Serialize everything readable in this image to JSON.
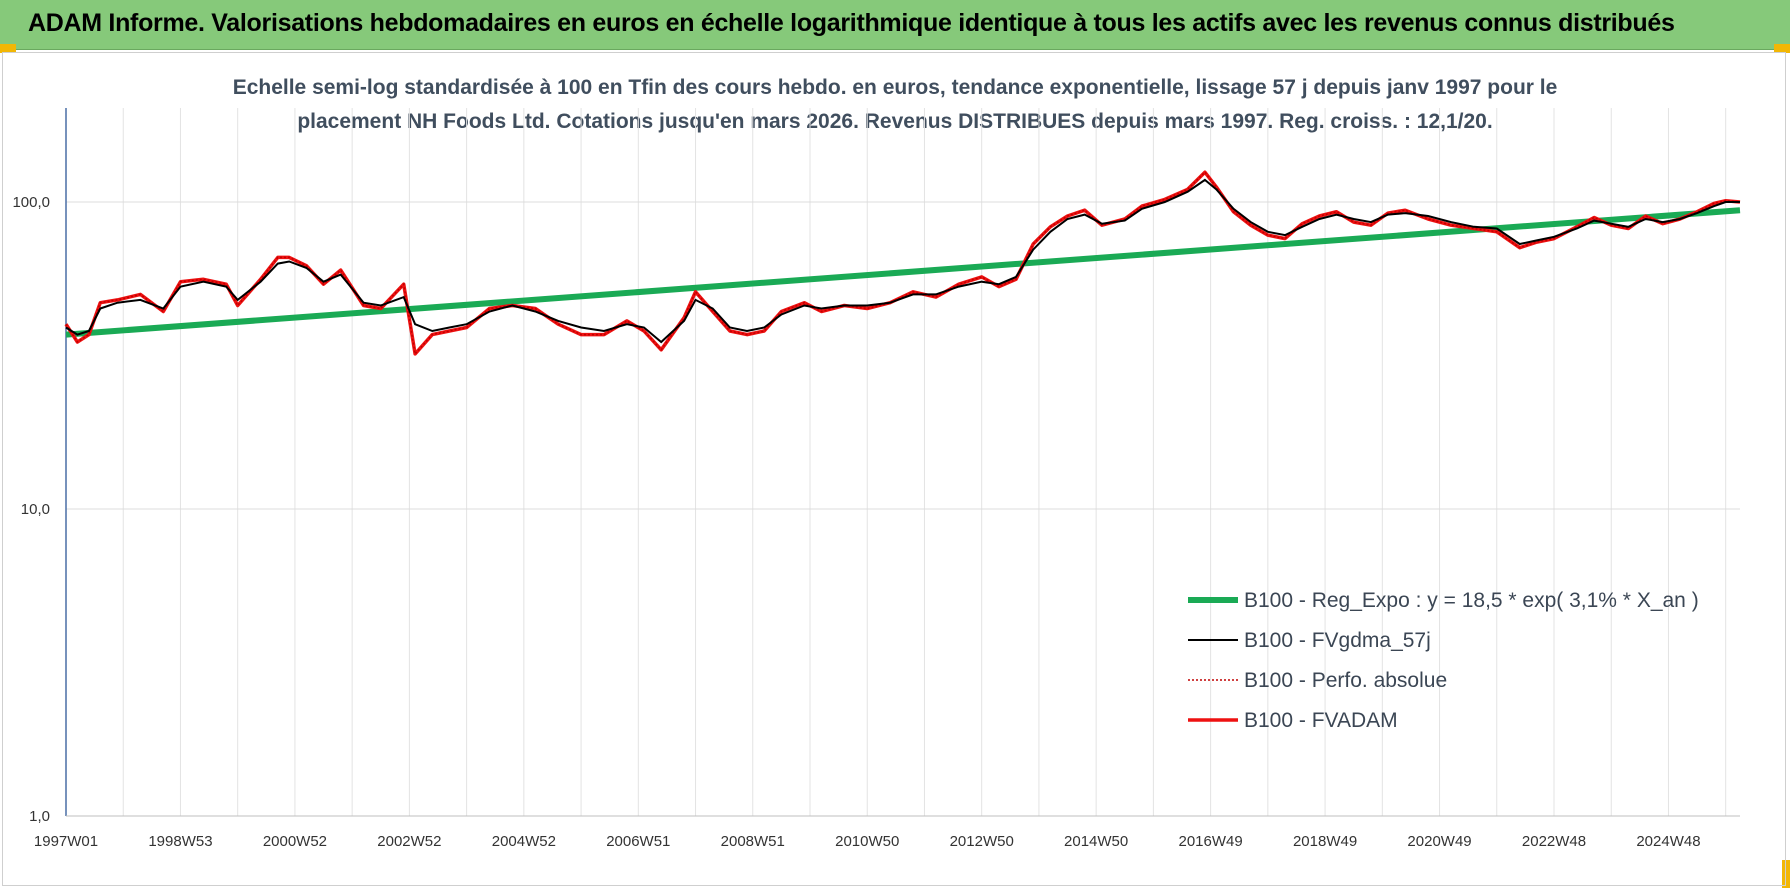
{
  "header": {
    "title": "ADAM Informe. Valorisations hebdomadaires en euros en échelle logarithmique identique à tous les actifs avec les revenus connus distribués"
  },
  "colors": {
    "banner": "#86c97a",
    "corner": "#f2b705",
    "trend": "#1aaa55",
    "smooth": "#000000",
    "perf": "#c00000",
    "fvadam": "#ee1111"
  },
  "chart_data": {
    "type": "line",
    "title_line1": "Echelle semi-log standardisée à 100 en Tfin des cours hebdo. en euros, tendance exponentielle, lissage 57 j depuis janv 1997 pour le",
    "title_line2": "placement NH Foods Ltd. Cotations jusqu'en mars 2026. Revenus DISTRIBUES depuis mars 1997. Reg. croiss. : 12,1/20.",
    "y_scale": "log",
    "ylim": [
      1,
      100
    ],
    "x_range": [
      1997.0,
      2026.25
    ],
    "y_ticks": [
      "1,0",
      "10,0",
      "100,0"
    ],
    "y_tick_values": [
      1,
      10,
      100
    ],
    "x_ticks": [
      "1997W01",
      "1998W53",
      "2000W52",
      "2002W52",
      "2004W52",
      "2006W51",
      "2008W51",
      "2010W50",
      "2012W50",
      "2014W50",
      "2016W49",
      "2018W49",
      "2020W49",
      "2022W48",
      "2024W48"
    ],
    "x_tick_values": [
      1997.0,
      1999.0,
      2001.0,
      2003.0,
      2005.0,
      2007.0,
      2009.0,
      2011.0,
      2013.0,
      2015.0,
      2017.0,
      2019.0,
      2021.0,
      2023.0,
      2025.0
    ],
    "grid": true,
    "legend_position": "bottom-right",
    "series": [
      {
        "name": "B100 - Reg_Expo : y = 18,5 * exp( 3,1% *  X_an )",
        "style": "trend",
        "x": [
          1997.0,
          2026.25
        ],
        "y": [
          37,
          94
        ]
      },
      {
        "name": "B100 - FVgdma_57j",
        "style": "smooth",
        "x": [
          1997.0,
          1997.2,
          1997.4,
          1997.6,
          1997.9,
          1998.3,
          1998.7,
          1999.0,
          1999.4,
          1999.8,
          2000.0,
          2000.4,
          2000.7,
          2000.9,
          2001.2,
          2001.5,
          2001.8,
          2002.2,
          2002.5,
          2002.9,
          2003.1,
          2003.4,
          2003.7,
          2004.0,
          2004.4,
          2004.8,
          2005.2,
          2005.6,
          2006.0,
          2006.4,
          2006.8,
          2007.1,
          2007.4,
          2007.8,
          2008.0,
          2008.3,
          2008.6,
          2008.9,
          2009.2,
          2009.5,
          2009.9,
          2010.2,
          2010.6,
          2011.0,
          2011.4,
          2011.8,
          2012.2,
          2012.6,
          2013.0,
          2013.3,
          2013.6,
          2013.9,
          2014.2,
          2014.5,
          2014.8,
          2015.1,
          2015.5,
          2015.8,
          2016.2,
          2016.6,
          2016.9,
          2017.1,
          2017.4,
          2017.7,
          2018.0,
          2018.3,
          2018.6,
          2018.9,
          2019.2,
          2019.5,
          2019.8,
          2020.1,
          2020.4,
          2020.8,
          2021.2,
          2021.6,
          2022.0,
          2022.4,
          2022.7,
          2023.0,
          2023.4,
          2023.7,
          2024.0,
          2024.3,
          2024.6,
          2024.9,
          2025.2,
          2025.5,
          2025.8,
          2026.0,
          2026.25
        ],
        "y": [
          39,
          37,
          38,
          45,
          47,
          48,
          45,
          53,
          55,
          53,
          48,
          55,
          63,
          64,
          61,
          55,
          58,
          47,
          46,
          49,
          40,
          38,
          39,
          40,
          44,
          46,
          44,
          41,
          39,
          38,
          40,
          39,
          35,
          41,
          48,
          45,
          39,
          38,
          39,
          43,
          46,
          45,
          46,
          46,
          47,
          50,
          50,
          53,
          55,
          54,
          57,
          70,
          80,
          88,
          91,
          85,
          87,
          95,
          100,
          108,
          118,
          110,
          95,
          86,
          80,
          78,
          83,
          88,
          91,
          88,
          86,
          91,
          92,
          90,
          86,
          83,
          82,
          73,
          75,
          77,
          82,
          87,
          85,
          83,
          88,
          86,
          88,
          92,
          97,
          100,
          100
        ]
      },
      {
        "name": "B100 - Perfo. absolue",
        "style": "perf",
        "x": [
          1997.0,
          1997.2,
          1997.4,
          1997.6,
          1997.9,
          1998.3,
          1998.7,
          1999.0,
          1999.4,
          1999.8,
          2000.0,
          2000.4,
          2000.7,
          2000.9,
          2001.2,
          2001.5,
          2001.8,
          2002.2,
          2002.5,
          2002.9,
          2003.1,
          2003.4,
          2003.7,
          2004.0,
          2004.4,
          2004.8,
          2005.2,
          2005.6,
          2006.0,
          2006.4,
          2006.8,
          2007.1,
          2007.4,
          2007.8,
          2008.0,
          2008.3,
          2008.6,
          2008.9,
          2009.2,
          2009.5,
          2009.9,
          2010.2,
          2010.6,
          2011.0,
          2011.4,
          2011.8,
          2012.2,
          2012.6,
          2013.0,
          2013.3,
          2013.6,
          2013.9,
          2014.2,
          2014.5,
          2014.8,
          2015.1,
          2015.5,
          2015.8,
          2016.2,
          2016.6,
          2016.9,
          2017.1,
          2017.4,
          2017.7,
          2018.0,
          2018.3,
          2018.6,
          2018.9,
          2019.2,
          2019.5,
          2019.8,
          2020.1,
          2020.4,
          2020.8,
          2021.2,
          2021.6,
          2022.0,
          2022.4,
          2022.7,
          2023.0,
          2023.4,
          2023.7,
          2024.0,
          2024.3,
          2024.6,
          2024.9,
          2025.2,
          2025.5,
          2025.8,
          2026.0,
          2026.25
        ],
        "y": [
          40,
          35,
          37,
          47,
          48,
          50,
          44,
          55,
          56,
          54,
          46,
          56,
          66,
          66,
          62,
          54,
          60,
          46,
          45,
          54,
          32,
          37,
          38,
          39,
          45,
          46,
          45,
          40,
          37,
          37,
          41,
          38,
          33,
          42,
          51,
          44,
          38,
          37,
          38,
          44,
          47,
          44,
          46,
          45,
          47,
          51,
          49,
          54,
          57,
          53,
          56,
          73,
          83,
          90,
          94,
          84,
          88,
          97,
          102,
          110,
          125,
          112,
          93,
          84,
          78,
          76,
          85,
          90,
          93,
          86,
          84,
          92,
          94,
          88,
          84,
          82,
          80,
          71,
          74,
          76,
          83,
          89,
          84,
          82,
          90,
          85,
          88,
          93,
          99,
          101,
          100
        ]
      },
      {
        "name": "B100 - FVADAM",
        "style": "fvadam",
        "x": [
          1997.0,
          1997.2,
          1997.4,
          1997.6,
          1997.9,
          1998.3,
          1998.7,
          1999.0,
          1999.4,
          1999.8,
          2000.0,
          2000.4,
          2000.7,
          2000.9,
          2001.2,
          2001.5,
          2001.8,
          2002.2,
          2002.5,
          2002.9,
          2003.1,
          2003.4,
          2003.7,
          2004.0,
          2004.4,
          2004.8,
          2005.2,
          2005.6,
          2006.0,
          2006.4,
          2006.8,
          2007.1,
          2007.4,
          2007.8,
          2008.0,
          2008.3,
          2008.6,
          2008.9,
          2009.2,
          2009.5,
          2009.9,
          2010.2,
          2010.6,
          2011.0,
          2011.4,
          2011.8,
          2012.2,
          2012.6,
          2013.0,
          2013.3,
          2013.6,
          2013.9,
          2014.2,
          2014.5,
          2014.8,
          2015.1,
          2015.5,
          2015.8,
          2016.2,
          2016.6,
          2016.9,
          2017.1,
          2017.4,
          2017.7,
          2018.0,
          2018.3,
          2018.6,
          2018.9,
          2019.2,
          2019.5,
          2019.8,
          2020.1,
          2020.4,
          2020.8,
          2021.2,
          2021.6,
          2022.0,
          2022.4,
          2022.7,
          2023.0,
          2023.4,
          2023.7,
          2024.0,
          2024.3,
          2024.6,
          2024.9,
          2025.2,
          2025.5,
          2025.8,
          2026.0,
          2026.25
        ],
        "y": [
          40,
          35,
          37,
          47,
          48,
          50,
          44,
          55,
          56,
          54,
          46,
          56,
          66,
          66,
          62,
          54,
          60,
          46,
          45,
          54,
          32,
          37,
          38,
          39,
          45,
          46,
          45,
          40,
          37,
          37,
          41,
          38,
          33,
          42,
          51,
          44,
          38,
          37,
          38,
          44,
          47,
          44,
          46,
          45,
          47,
          51,
          49,
          54,
          57,
          53,
          56,
          73,
          83,
          90,
          94,
          84,
          88,
          97,
          102,
          110,
          125,
          112,
          93,
          84,
          78,
          76,
          85,
          90,
          93,
          86,
          84,
          92,
          94,
          88,
          84,
          82,
          80,
          71,
          74,
          76,
          83,
          89,
          84,
          82,
          90,
          85,
          88,
          93,
          99,
          101,
          100
        ]
      }
    ]
  }
}
